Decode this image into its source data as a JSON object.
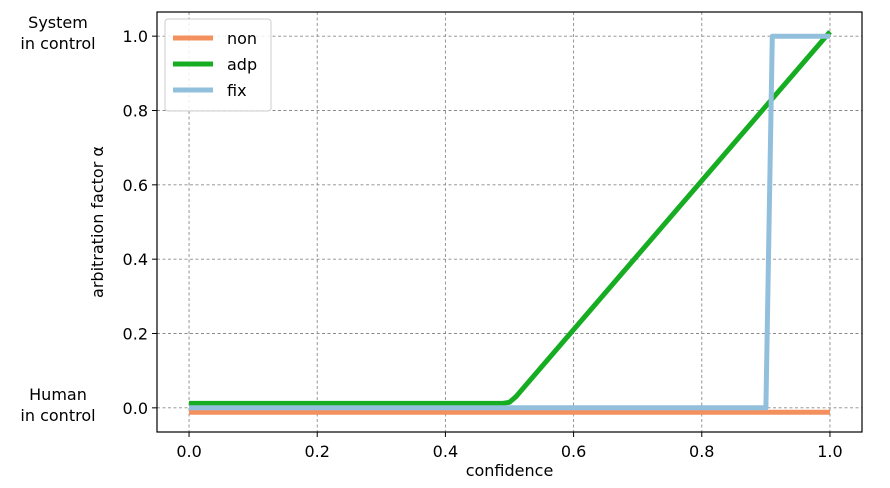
{
  "chart_data": {
    "type": "line",
    "title": "",
    "xlabel": "confidence",
    "ylabel": "arbitration factor α",
    "xlim": [
      -0.05,
      1.05
    ],
    "ylim": [
      -0.065,
      1.065
    ],
    "xticks": [
      0.0,
      0.2,
      0.4,
      0.6,
      0.8,
      1.0
    ],
    "xtick_labels": [
      "0.0",
      "0.2",
      "0.4",
      "0.6",
      "0.8",
      "1.0"
    ],
    "yticks": [
      0.0,
      0.2,
      0.4,
      0.6,
      0.8,
      1.0
    ],
    "ytick_labels": [
      "0.0",
      "0.2",
      "0.4",
      "0.6",
      "0.8",
      "1.0"
    ],
    "grid": true,
    "legend": "top-left",
    "annotations": [
      {
        "y": 1.0,
        "lines": [
          "System",
          "in control"
        ]
      },
      {
        "y": 0.0,
        "lines": [
          "Human",
          "in control"
        ]
      }
    ],
    "series": [
      {
        "name": "non",
        "color": "#f4905e",
        "x": [
          0.0,
          1.0
        ],
        "y": [
          -0.012,
          -0.012
        ]
      },
      {
        "name": "adp",
        "color": "#17ad22",
        "x": [
          0.0,
          0.49,
          0.5,
          0.51,
          1.0
        ],
        "y": [
          0.012,
          0.012,
          0.015,
          0.03,
          1.012
        ]
      },
      {
        "name": "fix",
        "color": "#92bfdc",
        "x": [
          0.0,
          0.9,
          0.91,
          1.0
        ],
        "y": [
          0.0,
          0.0,
          1.0,
          1.0
        ]
      }
    ]
  }
}
